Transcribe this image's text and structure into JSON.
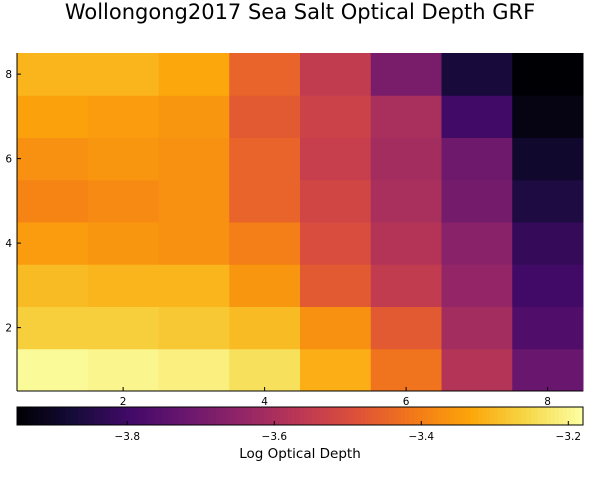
{
  "chart_data": {
    "type": "heatmap",
    "title": "Wollongong2017 Sea Salt Optical Depth GRF",
    "xlabel": "",
    "ylabel": "",
    "x_ticks": [
      "2",
      "4",
      "6",
      "8"
    ],
    "y_ticks": [
      "2",
      "4",
      "6",
      "8"
    ],
    "x_range": [
      0.5,
      8.5
    ],
    "y_range": [
      0.5,
      8.5
    ],
    "colormap": "inferno",
    "colorbar": {
      "label": "Log Optical Depth",
      "range": [
        -3.95,
        -3.18
      ],
      "ticks": [
        "−3.8",
        "−3.6",
        "−3.4",
        "−3.2"
      ],
      "tick_values": [
        -3.8,
        -3.6,
        -3.4,
        -3.2
      ]
    },
    "rows_y1_to_y8": [
      [
        -3.19,
        -3.2,
        -3.21,
        -3.24,
        -3.32,
        -3.42,
        -3.58,
        -3.72
      ],
      [
        -3.27,
        -3.27,
        -3.28,
        -3.3,
        -3.37,
        -3.47,
        -3.61,
        -3.77
      ],
      [
        -3.3,
        -3.31,
        -3.31,
        -3.36,
        -3.47,
        -3.55,
        -3.64,
        -3.8
      ],
      [
        -3.35,
        -3.36,
        -3.37,
        -3.4,
        -3.5,
        -3.58,
        -3.66,
        -3.82
      ],
      [
        -3.39,
        -3.38,
        -3.37,
        -3.45,
        -3.52,
        -3.6,
        -3.7,
        -3.86
      ],
      [
        -3.37,
        -3.36,
        -3.37,
        -3.45,
        -3.54,
        -3.61,
        -3.71,
        -3.89
      ],
      [
        -3.34,
        -3.35,
        -3.36,
        -3.47,
        -3.53,
        -3.6,
        -3.8,
        -3.93
      ],
      [
        -3.31,
        -3.31,
        -3.33,
        -3.45,
        -3.55,
        -3.69,
        -3.87,
        -3.96
      ]
    ]
  }
}
